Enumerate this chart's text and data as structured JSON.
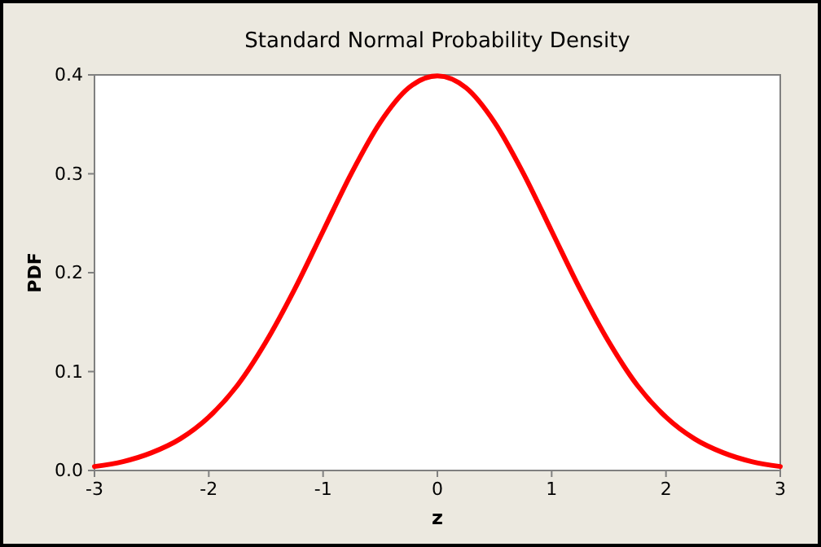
{
  "chart_data": {
    "type": "line",
    "title": "Standard Normal Probability Density",
    "xlabel": "z",
    "ylabel": "PDF",
    "x": [
      -3,
      -2.75,
      -2.5,
      -2.25,
      -2,
      -1.75,
      -1.5,
      -1.25,
      -1,
      -0.75,
      -0.5,
      -0.25,
      0,
      0.25,
      0.5,
      0.75,
      1,
      1.25,
      1.5,
      1.75,
      2,
      2.25,
      2.5,
      2.75,
      3
    ],
    "series": [
      {
        "color": "#ff0000",
        "values": [
          0.004,
          0.009,
          0.018,
          0.032,
          0.054,
          0.086,
          0.13,
          0.183,
          0.242,
          0.301,
          0.352,
          0.387,
          0.399,
          0.387,
          0.352,
          0.301,
          0.242,
          0.183,
          0.13,
          0.086,
          0.054,
          0.032,
          0.018,
          0.009,
          0.004
        ]
      }
    ],
    "xlim": [
      -3,
      3
    ],
    "xticks": [
      -3,
      -2,
      -1,
      0,
      1,
      2,
      3
    ],
    "ylim": [
      0,
      0.4
    ],
    "yticks": [
      {
        "value": 0,
        "label": "0.0"
      },
      0.1,
      0.2,
      0.3,
      0.4
    ],
    "grid": false,
    "legend": false,
    "marker": "none",
    "line_style": "solid"
  }
}
